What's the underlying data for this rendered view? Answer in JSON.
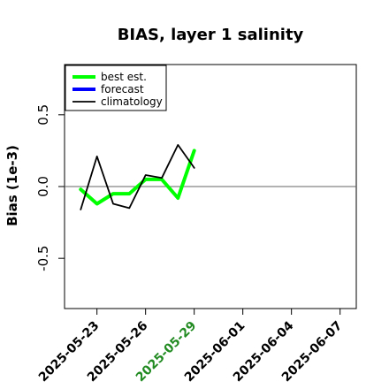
{
  "chart_data": {
    "type": "line",
    "title": "BIAS, layer 1 salinity",
    "ylabel": "Bias (1e-3)",
    "xlabel": "",
    "ylim": [
      -0.85,
      0.85
    ],
    "yticks": [
      -0.5,
      0.0,
      0.5
    ],
    "ytick_labels": [
      "-0.5",
      "0.0",
      "0.5"
    ],
    "xlim": [
      "2025-05-21",
      "2025-06-08"
    ],
    "xticks": [
      "2025-05-23",
      "2025-05-26",
      "2025-05-29",
      "2025-06-01",
      "2025-06-04",
      "2025-06-07"
    ],
    "highlighted_xtick": "2025-05-29",
    "highlight_color": "#228B22",
    "zero_line": true,
    "legend_position": "top-left",
    "series": [
      {
        "name": "best est.",
        "color": "#00ff00",
        "points": [
          {
            "x": "2025-05-22",
            "y": -0.02
          },
          {
            "x": "2025-05-23",
            "y": -0.12
          },
          {
            "x": "2025-05-24",
            "y": -0.05
          },
          {
            "x": "2025-05-25",
            "y": -0.05
          },
          {
            "x": "2025-05-26",
            "y": 0.05
          },
          {
            "x": "2025-05-27",
            "y": 0.05
          },
          {
            "x": "2025-05-28",
            "y": -0.08
          },
          {
            "x": "2025-05-29",
            "y": 0.25
          }
        ]
      },
      {
        "name": "forecast",
        "color": "#0000ff",
        "points": []
      },
      {
        "name": "climatology",
        "color": "#000000",
        "points": [
          {
            "x": "2025-05-22",
            "y": -0.16
          },
          {
            "x": "2025-05-23",
            "y": 0.21
          },
          {
            "x": "2025-05-24",
            "y": -0.12
          },
          {
            "x": "2025-05-25",
            "y": -0.15
          },
          {
            "x": "2025-05-26",
            "y": 0.08
          },
          {
            "x": "2025-05-27",
            "y": 0.06
          },
          {
            "x": "2025-05-28",
            "y": 0.29
          },
          {
            "x": "2025-05-29",
            "y": 0.13
          }
        ]
      }
    ]
  }
}
